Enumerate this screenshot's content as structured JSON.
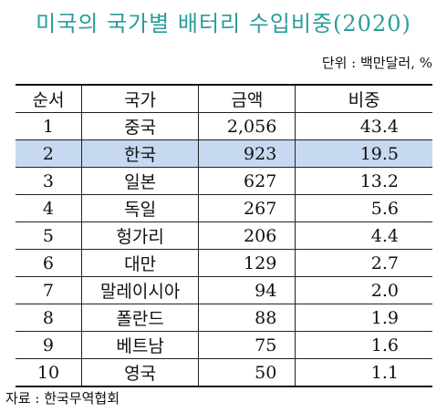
{
  "header": {
    "title": "미국의 국가별 배터리 수입비중(2020)",
    "unit": "단위 : 백만달러, %"
  },
  "table": {
    "columns": [
      "순서",
      "국가",
      "금액",
      "비중"
    ],
    "rows": [
      [
        "1",
        "중국",
        "2,056",
        "43.4"
      ],
      [
        "2",
        "한국",
        "923",
        "19.5"
      ],
      [
        "3",
        "일본",
        "627",
        "13.2"
      ],
      [
        "4",
        "독일",
        "267",
        "5.6"
      ],
      [
        "5",
        "헝가리",
        "206",
        "4.4"
      ],
      [
        "6",
        "대만",
        "129",
        "2.7"
      ],
      [
        "7",
        "말레이시아",
        "94",
        "2.0"
      ],
      [
        "8",
        "폴란드",
        "88",
        "1.9"
      ],
      [
        "9",
        "베트남",
        "75",
        "1.6"
      ],
      [
        "10",
        "영국",
        "50",
        "1.1"
      ]
    ],
    "highlight_row": 1
  },
  "footer": {
    "source": "자료 : 한국무역협회"
  }
}
